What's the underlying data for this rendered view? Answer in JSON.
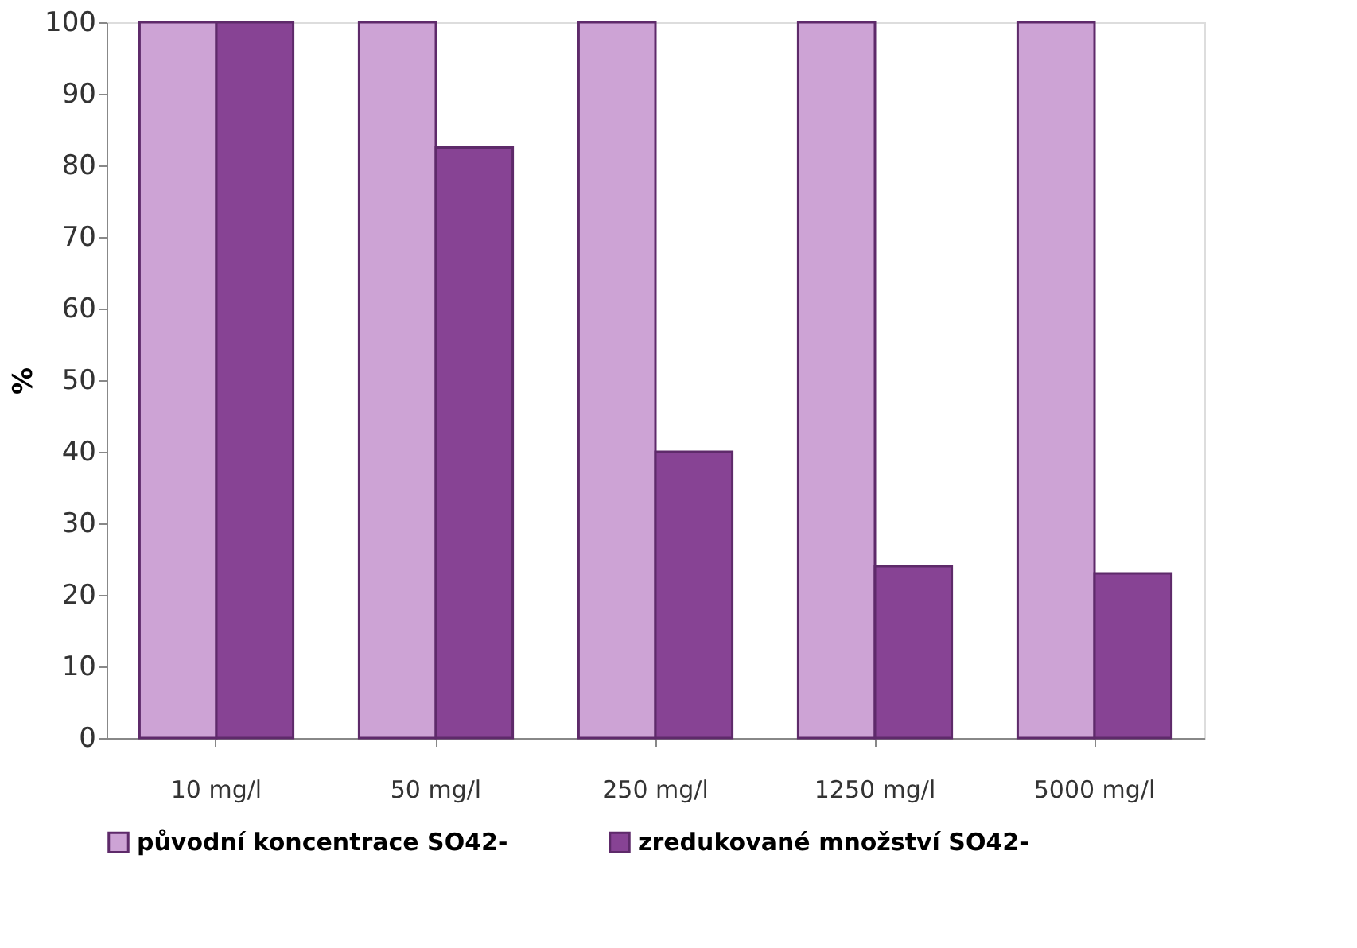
{
  "chart_data": {
    "type": "bar",
    "ylabel": "%",
    "categories": [
      "10 mg/l",
      "50 mg/l",
      "250 mg/l",
      "1250 mg/l",
      "5000 mg/l"
    ],
    "series": [
      {
        "name": "původní koncentrace SO42-",
        "color": "#cda3d5",
        "values": [
          100,
          100,
          100,
          100,
          100
        ]
      },
      {
        "name": "zredukované množství SO42-",
        "color": "#874394",
        "values": [
          100,
          82.5,
          40,
          24,
          23
        ]
      }
    ],
    "ylim": [
      0,
      100
    ],
    "yticks": [
      0,
      10,
      20,
      30,
      40,
      50,
      60,
      70,
      80,
      90,
      100
    ],
    "grid": false,
    "legend": "bottom"
  }
}
